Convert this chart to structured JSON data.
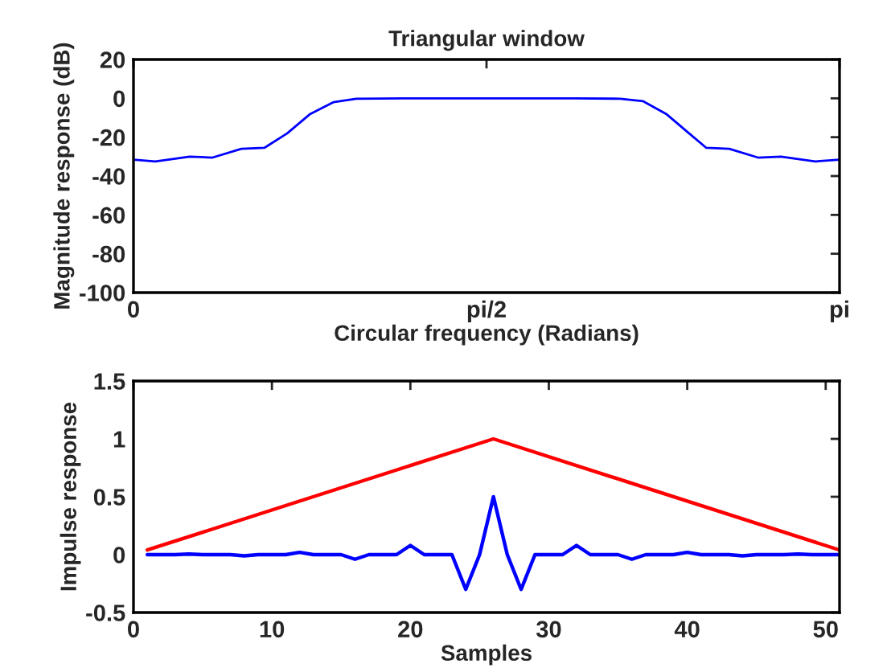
{
  "chart_data": [
    {
      "type": "line",
      "title": "Triangular window",
      "xlabel": "Circular frequency (Radians)",
      "ylabel": "Magnitude response (dB)",
      "series": [
        {
          "color": "#0000ff",
          "x": [
            0,
            0.097,
            0.25,
            0.352,
            0.48,
            0.582,
            0.684,
            0.787,
            0.889,
            0.991,
            1.195,
            1.579,
            1.962,
            2.166,
            2.268,
            2.37,
            2.472,
            2.549,
            2.651,
            2.779,
            2.881,
            3.034,
            3.1416
          ],
          "values": [
            -31.6,
            -32.5,
            -30,
            -30.5,
            -26,
            -25.5,
            -18,
            -8,
            -2,
            -0.2,
            0,
            0,
            0,
            -0.2,
            -1.5,
            -8,
            -18,
            -25.5,
            -26,
            -30.5,
            -30,
            -32.5,
            -31.6
          ]
        }
      ],
      "xlim": [
        0,
        3.1416
      ],
      "xticks": [
        {
          "value": 0,
          "label": "0"
        },
        {
          "value": 1.5708,
          "label": "pi/2"
        },
        {
          "value": 3.1416,
          "label": "pi"
        }
      ],
      "ylim": [
        -100,
        20
      ],
      "yticks": [
        -100,
        -80,
        -60,
        -40,
        -20,
        0,
        20
      ]
    },
    {
      "type": "line",
      "xlabel": "Samples",
      "ylabel": "Impulse response",
      "series": [
        {
          "color": "#ff0000",
          "x": [
            1,
            26,
            51
          ],
          "values": [
            0.04,
            1,
            0.04
          ]
        },
        {
          "color": "#0000ff",
          "x": [
            1,
            2,
            3,
            4,
            5,
            6,
            7,
            8,
            9,
            10,
            11,
            12,
            13,
            14,
            15,
            16,
            17,
            18,
            19,
            20,
            21,
            22,
            23,
            24,
            25,
            26,
            27,
            28,
            29,
            30,
            31,
            32,
            33,
            34,
            35,
            36,
            37,
            38,
            39,
            40,
            41,
            42,
            43,
            44,
            45,
            46,
            47,
            48,
            49,
            50,
            51
          ],
          "values": [
            0,
            0,
            0,
            0.005,
            0,
            0,
            0,
            -0.01,
            0,
            0,
            0,
            0.02,
            0,
            0,
            0,
            -0.04,
            0,
            0,
            0,
            0.08,
            0,
            0,
            0,
            -0.3,
            0,
            0.5,
            0,
            -0.3,
            0,
            0,
            0,
            0.08,
            0,
            0,
            0,
            -0.04,
            0,
            0,
            0,
            0.02,
            0,
            0,
            0,
            -0.01,
            0,
            0,
            0,
            0.005,
            0,
            0,
            0
          ]
        }
      ],
      "xlim": [
        0,
        51
      ],
      "xticks": [
        0,
        10,
        20,
        30,
        40,
        50
      ],
      "ylim": [
        -0.5,
        1.5
      ],
      "yticks": [
        -0.5,
        0,
        0.5,
        1,
        1.5
      ]
    }
  ]
}
